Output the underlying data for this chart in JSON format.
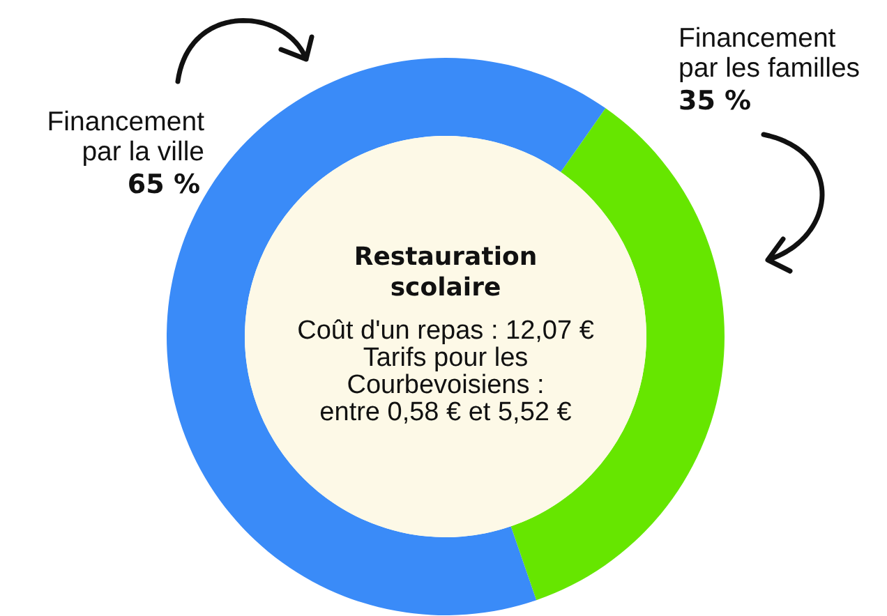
{
  "chart_data": {
    "type": "donut",
    "title": "Restauration\nscolaire",
    "categories": [
      "Financement\npar la ville",
      "Financement\npar les familles"
    ],
    "values": [
      65,
      35
    ],
    "colors": [
      "#3a8bf8",
      "#66e600"
    ],
    "value_labels": [
      "65 %",
      "35 %"
    ],
    "annotations": [
      "Coût d'un repas : 12,07 €\nTarifs pour les\nCourbevoisiens :\nentre 0,58 € et 5,52 €"
    ]
  }
}
